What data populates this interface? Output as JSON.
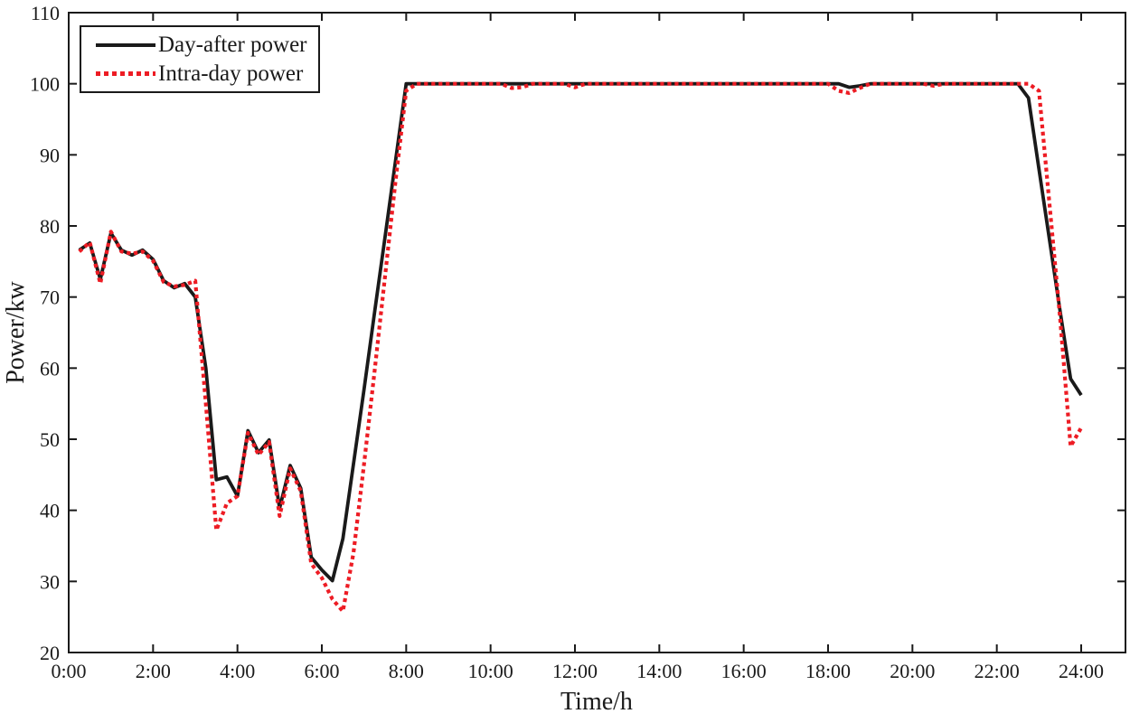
{
  "figure": {
    "background": "#ffffff",
    "ink_color": "#1a1a1a"
  },
  "chart_data": {
    "type": "line",
    "title": "",
    "xlabel": "Time/h",
    "ylabel": "Power/kw",
    "xlim": [
      0,
      25.05
    ],
    "ylim": [
      20,
      110
    ],
    "grid": false,
    "x_start": 0.25,
    "x_step": 0.25,
    "x_ticks": [
      {
        "value": 0,
        "label": "0:00"
      },
      {
        "value": 2,
        "label": "2:00"
      },
      {
        "value": 4,
        "label": "4:00"
      },
      {
        "value": 6,
        "label": "6:00"
      },
      {
        "value": 8,
        "label": "8:00"
      },
      {
        "value": 10,
        "label": "10:00"
      },
      {
        "value": 12,
        "label": "12:00"
      },
      {
        "value": 14,
        "label": "14:00"
      },
      {
        "value": 16,
        "label": "16:00"
      },
      {
        "value": 18,
        "label": "18:00"
      },
      {
        "value": 20,
        "label": "20:00"
      },
      {
        "value": 22,
        "label": "22:00"
      },
      {
        "value": 24,
        "label": "24:00"
      }
    ],
    "y_ticks": [
      {
        "value": 20,
        "label": "20"
      },
      {
        "value": 30,
        "label": "30"
      },
      {
        "value": 40,
        "label": "40"
      },
      {
        "value": 50,
        "label": "50"
      },
      {
        "value": 60,
        "label": "60"
      },
      {
        "value": 70,
        "label": "70"
      },
      {
        "value": 80,
        "label": "80"
      },
      {
        "value": 90,
        "label": "90"
      },
      {
        "value": 100,
        "label": "100"
      },
      {
        "value": 110,
        "label": "110"
      }
    ],
    "legend": {
      "position": "top-left",
      "entries": [
        "Day-after power",
        "Intra-day power"
      ]
    },
    "series": [
      {
        "name": "Day-after power",
        "color": "#1a1a1a",
        "line_style": "solid",
        "line_width": 3.8,
        "values": [
          76.6,
          77.6,
          72.5,
          79.0,
          76.6,
          75.9,
          76.6,
          75.3,
          72.3,
          71.3,
          71.9,
          70.0,
          60.0,
          44.3,
          44.7,
          42.0,
          51.2,
          48.1,
          49.9,
          40.3,
          46.3,
          43.1,
          33.4,
          31.6,
          30.1,
          36.0,
          46.5,
          57.0,
          67.8,
          78.5,
          89.3,
          100,
          100,
          100,
          100,
          100,
          100,
          100,
          100,
          100,
          100,
          100,
          100,
          100,
          100,
          100,
          100,
          100,
          100,
          100,
          100,
          100,
          100,
          100,
          100,
          100,
          100,
          100,
          100,
          100,
          100,
          100,
          100,
          100,
          100,
          100,
          100,
          100,
          100,
          100,
          100,
          100,
          100,
          99.5,
          99.7,
          100,
          100,
          100,
          100,
          100,
          100,
          100,
          100,
          100,
          100,
          100,
          100,
          100,
          100,
          100,
          98.0,
          88.0,
          78.0,
          68.0,
          58.5,
          56.2
        ]
      },
      {
        "name": "Intra-day power",
        "color": "#ed1c24",
        "line_style": "dotted",
        "line_width": 4.2,
        "values": [
          76.4,
          77.7,
          71.9,
          79.2,
          76.4,
          76.1,
          76.4,
          75.1,
          72.1,
          71.5,
          71.7,
          72.3,
          55.0,
          37.2,
          41.0,
          42.0,
          50.9,
          47.8,
          49.6,
          39.2,
          45.9,
          42.7,
          32.5,
          30.5,
          27.5,
          25.8,
          34.0,
          46.5,
          59.5,
          73.0,
          86.5,
          99.0,
          100,
          100,
          100,
          100,
          100,
          100,
          100,
          100,
          100,
          99.4,
          99.5,
          100,
          100,
          100,
          100,
          99.5,
          100,
          100,
          100,
          100,
          100,
          100,
          100,
          100,
          100,
          100,
          100,
          100,
          100,
          100,
          100,
          100,
          100,
          100,
          100,
          100,
          100,
          100,
          100,
          100,
          99.0,
          98.7,
          99.4,
          100,
          100,
          100,
          100,
          100,
          100,
          99.7,
          100,
          100,
          100,
          100,
          100,
          100,
          100,
          100,
          100,
          99.0,
          83.0,
          67.0,
          49.0,
          51.6
        ]
      }
    ]
  }
}
